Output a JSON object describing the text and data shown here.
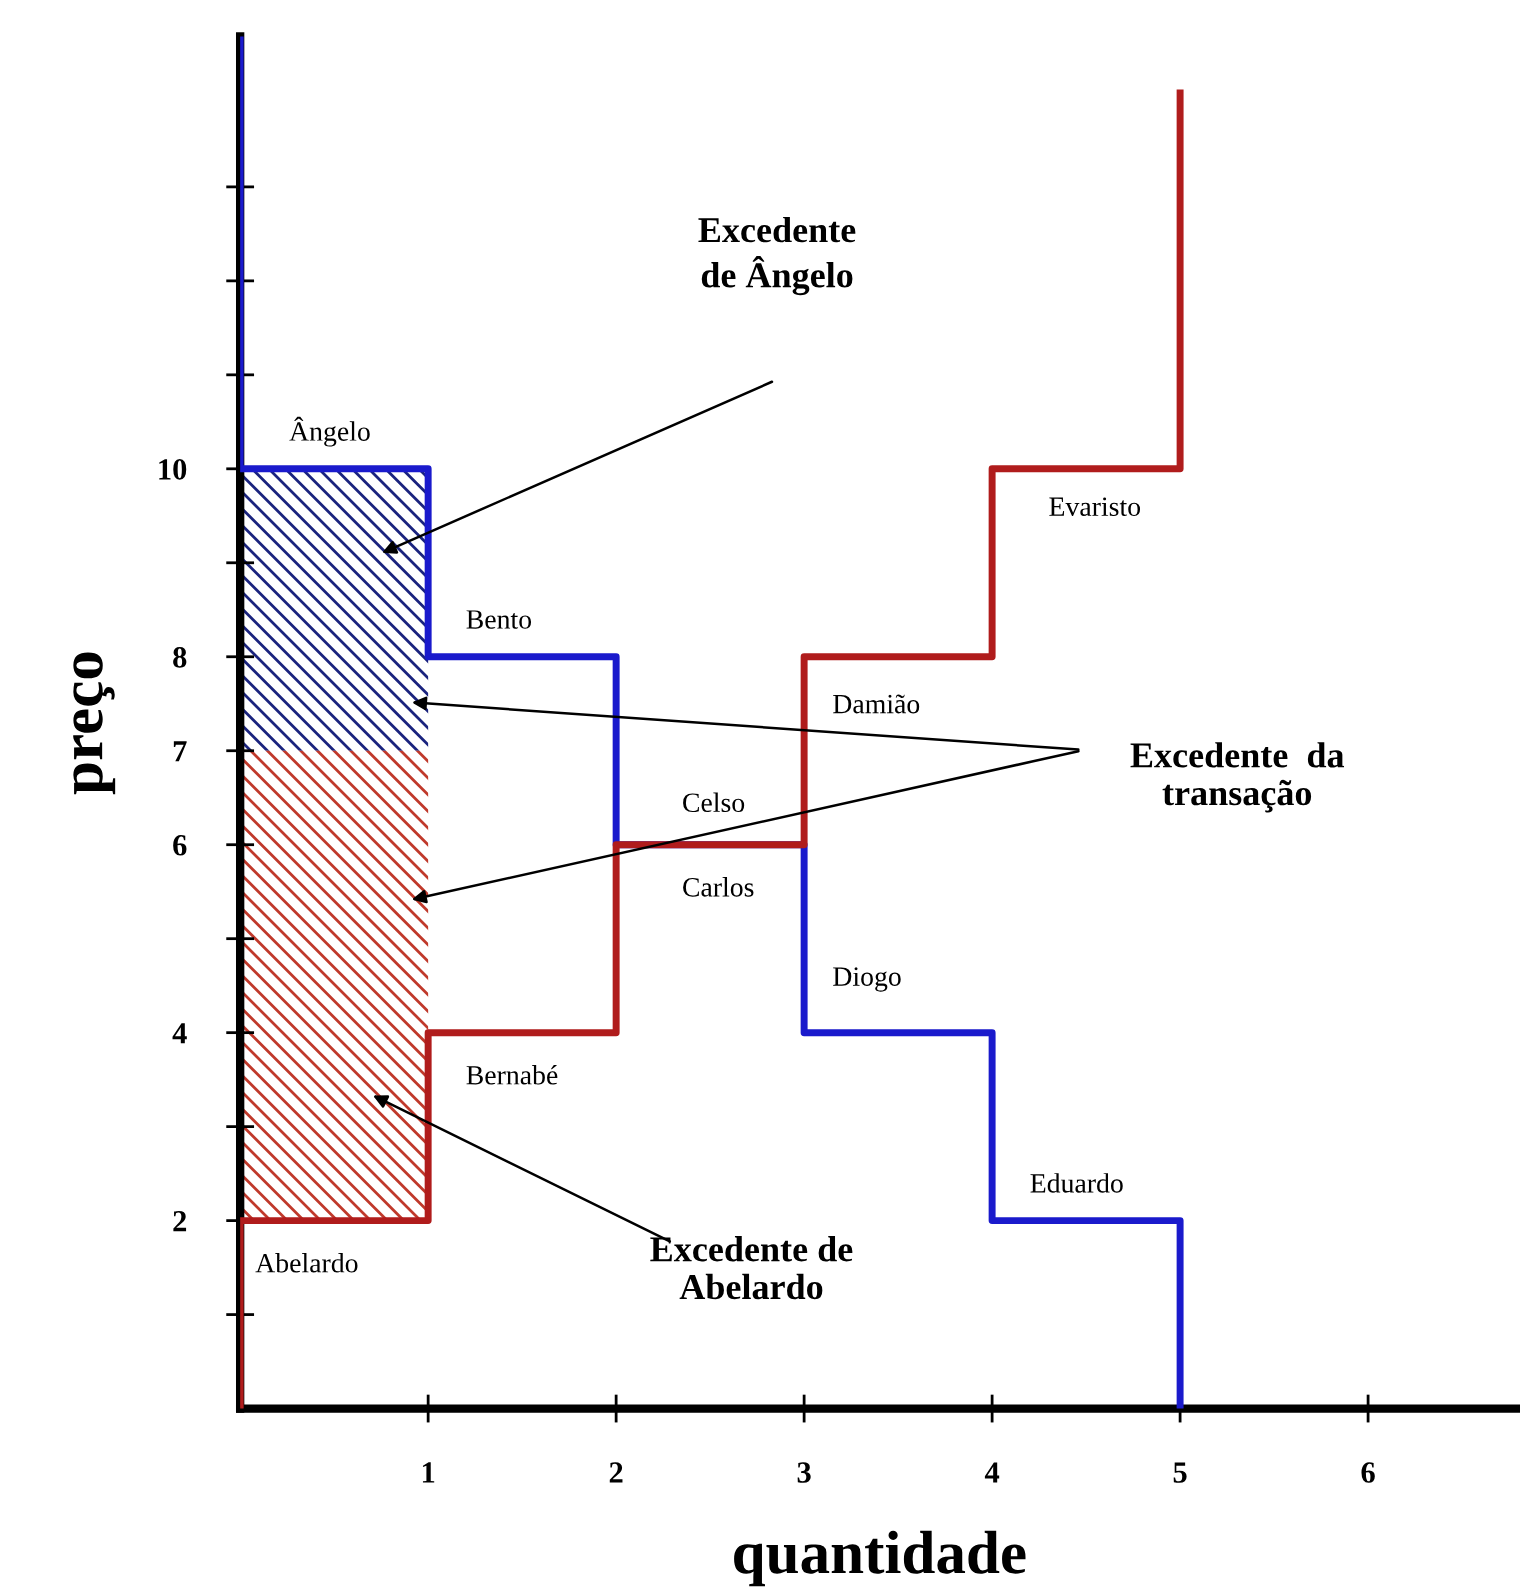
{
  "chart_data": {
    "type": "step",
    "xlabel": "quantidade",
    "ylabel": "preço",
    "xlim": [
      0,
      6.8
    ],
    "ylim": [
      0,
      14.6
    ],
    "xticks": [
      1,
      2,
      3,
      4,
      5,
      6
    ],
    "yticks": [
      {
        "value": 1,
        "label": null
      },
      2,
      {
        "value": 3,
        "label": null
      },
      4,
      {
        "value": 5,
        "label": null
      },
      6,
      7,
      8,
      {
        "value": 9,
        "label": null
      },
      10,
      {
        "value": 11,
        "label": null
      },
      {
        "value": 12,
        "label": null
      },
      {
        "value": 13,
        "label": null
      }
    ],
    "grid": false,
    "legend": false,
    "marker": "none",
    "line_style": "solid",
    "series": [
      {
        "color": "#1a1acc",
        "x": [
          0,
          0,
          1,
          2,
          3,
          4,
          5
        ],
        "values": [
          14.6,
          10,
          8,
          6,
          4,
          2,
          0
        ]
      },
      {
        "color": "#b01c1c",
        "x": [
          0,
          0,
          1,
          2,
          3,
          4,
          5
        ],
        "values": [
          0,
          2,
          4,
          6,
          8,
          10,
          14
        ]
      },
      {
        "type": "bar",
        "color": "#1a237e",
        "x": [
          0.5
        ],
        "base": [
          7
        ],
        "values": [
          3
        ]
      },
      {
        "type": "bar",
        "color": "#c0392b",
        "x": [
          0.5
        ],
        "base": [
          2
        ],
        "values": [
          5
        ]
      }
    ],
    "annotations": [
      {
        "text": "Ângelo",
        "x": 0.5,
        "y": 10
      },
      {
        "text": "Bento",
        "x": 1.5,
        "y": 8
      },
      {
        "text": "Celso",
        "x": 2.5,
        "y": 6
      },
      {
        "text": "Carlos",
        "x": 2.5,
        "y": 6
      },
      {
        "text": "Bernabé",
        "x": 1.5,
        "y": 4
      },
      {
        "text": "Abelardo",
        "x": 0.5,
        "y": 2
      },
      {
        "text": "Damião",
        "x": 3.5,
        "y": 8
      },
      {
        "text": "Evaristo",
        "x": 4.5,
        "y": 10
      },
      {
        "text": "Diogo",
        "x": 3.5,
        "y": 4
      },
      {
        "text": "Eduardo",
        "x": 4.5,
        "y": 2
      },
      "Excedente\nde Ângelo",
      "Excedente  da\ntransação",
      "Excedente de\nAbelardo"
    ]
  }
}
